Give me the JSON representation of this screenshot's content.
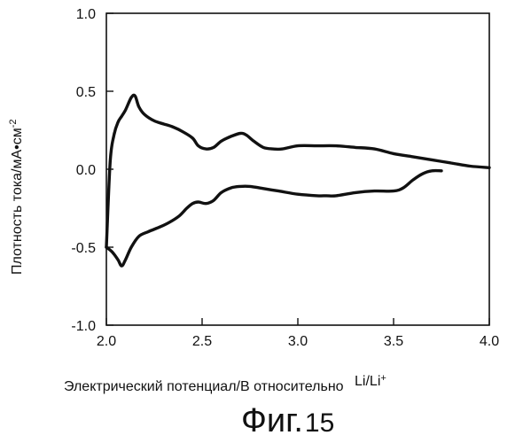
{
  "chart_data": {
    "type": "line",
    "title": "",
    "xlabel_main": "Электрический потенциал/В относительно",
    "xlabel_ref": "Li/Li",
    "xlabel_ref_sup": "+",
    "ylabel_main": "Плотность тока/мА•см",
    "ylabel_sup": "-2",
    "figure_caption": "Фиг.",
    "figure_number": "15",
    "xlim": [
      2.0,
      4.0
    ],
    "ylim": [
      -1.0,
      1.0
    ],
    "xticks": [
      2.0,
      2.5,
      3.0,
      3.5,
      4.0
    ],
    "xtick_labels": [
      "2.0",
      "2.5",
      "3.0",
      "3.5",
      "4.0"
    ],
    "yticks": [
      1.0,
      0.5,
      0.0,
      -0.5,
      -1.0
    ],
    "ytick_labels": [
      "1.0",
      "0.5",
      "0.0",
      "-0.5",
      "-1.0"
    ],
    "grid": false,
    "line_color": "#111111",
    "series": [
      {
        "x": [
          2.0,
          2.02,
          2.04,
          2.06,
          2.08,
          2.1,
          2.13,
          2.15,
          2.17,
          2.2,
          2.25,
          2.3,
          2.35,
          2.4,
          2.45,
          2.48,
          2.52,
          2.56,
          2.6,
          2.65,
          2.7,
          2.73,
          2.77,
          2.82,
          2.87,
          2.92,
          3.0,
          3.1,
          3.2,
          3.3,
          3.4,
          3.5,
          3.6,
          3.7,
          3.8,
          3.9,
          4.0
        ],
        "y": [
          -0.5,
          0.05,
          0.22,
          0.3,
          0.34,
          0.38,
          0.46,
          0.47,
          0.4,
          0.35,
          0.31,
          0.29,
          0.27,
          0.24,
          0.2,
          0.15,
          0.13,
          0.14,
          0.18,
          0.21,
          0.23,
          0.22,
          0.18,
          0.14,
          0.13,
          0.13,
          0.15,
          0.15,
          0.15,
          0.14,
          0.13,
          0.1,
          0.08,
          0.06,
          0.04,
          0.02,
          0.01
        ]
      },
      {
        "x": [
          2.0,
          2.03,
          2.06,
          2.08,
          2.1,
          2.13,
          2.17,
          2.22,
          2.28,
          2.33,
          2.38,
          2.42,
          2.45,
          2.48,
          2.52,
          2.56,
          2.6,
          2.65,
          2.7,
          2.75,
          2.8,
          2.9,
          3.0,
          3.1,
          3.15,
          3.2,
          3.3,
          3.4,
          3.5,
          3.55,
          3.6,
          3.65,
          3.7,
          3.75
        ],
        "y": [
          -0.5,
          -0.53,
          -0.58,
          -0.62,
          -0.58,
          -0.5,
          -0.43,
          -0.4,
          -0.37,
          -0.34,
          -0.3,
          -0.25,
          -0.22,
          -0.21,
          -0.22,
          -0.2,
          -0.15,
          -0.12,
          -0.11,
          -0.11,
          -0.12,
          -0.14,
          -0.16,
          -0.17,
          -0.17,
          -0.17,
          -0.15,
          -0.14,
          -0.14,
          -0.12,
          -0.07,
          -0.03,
          -0.01,
          -0.01
        ]
      }
    ]
  }
}
